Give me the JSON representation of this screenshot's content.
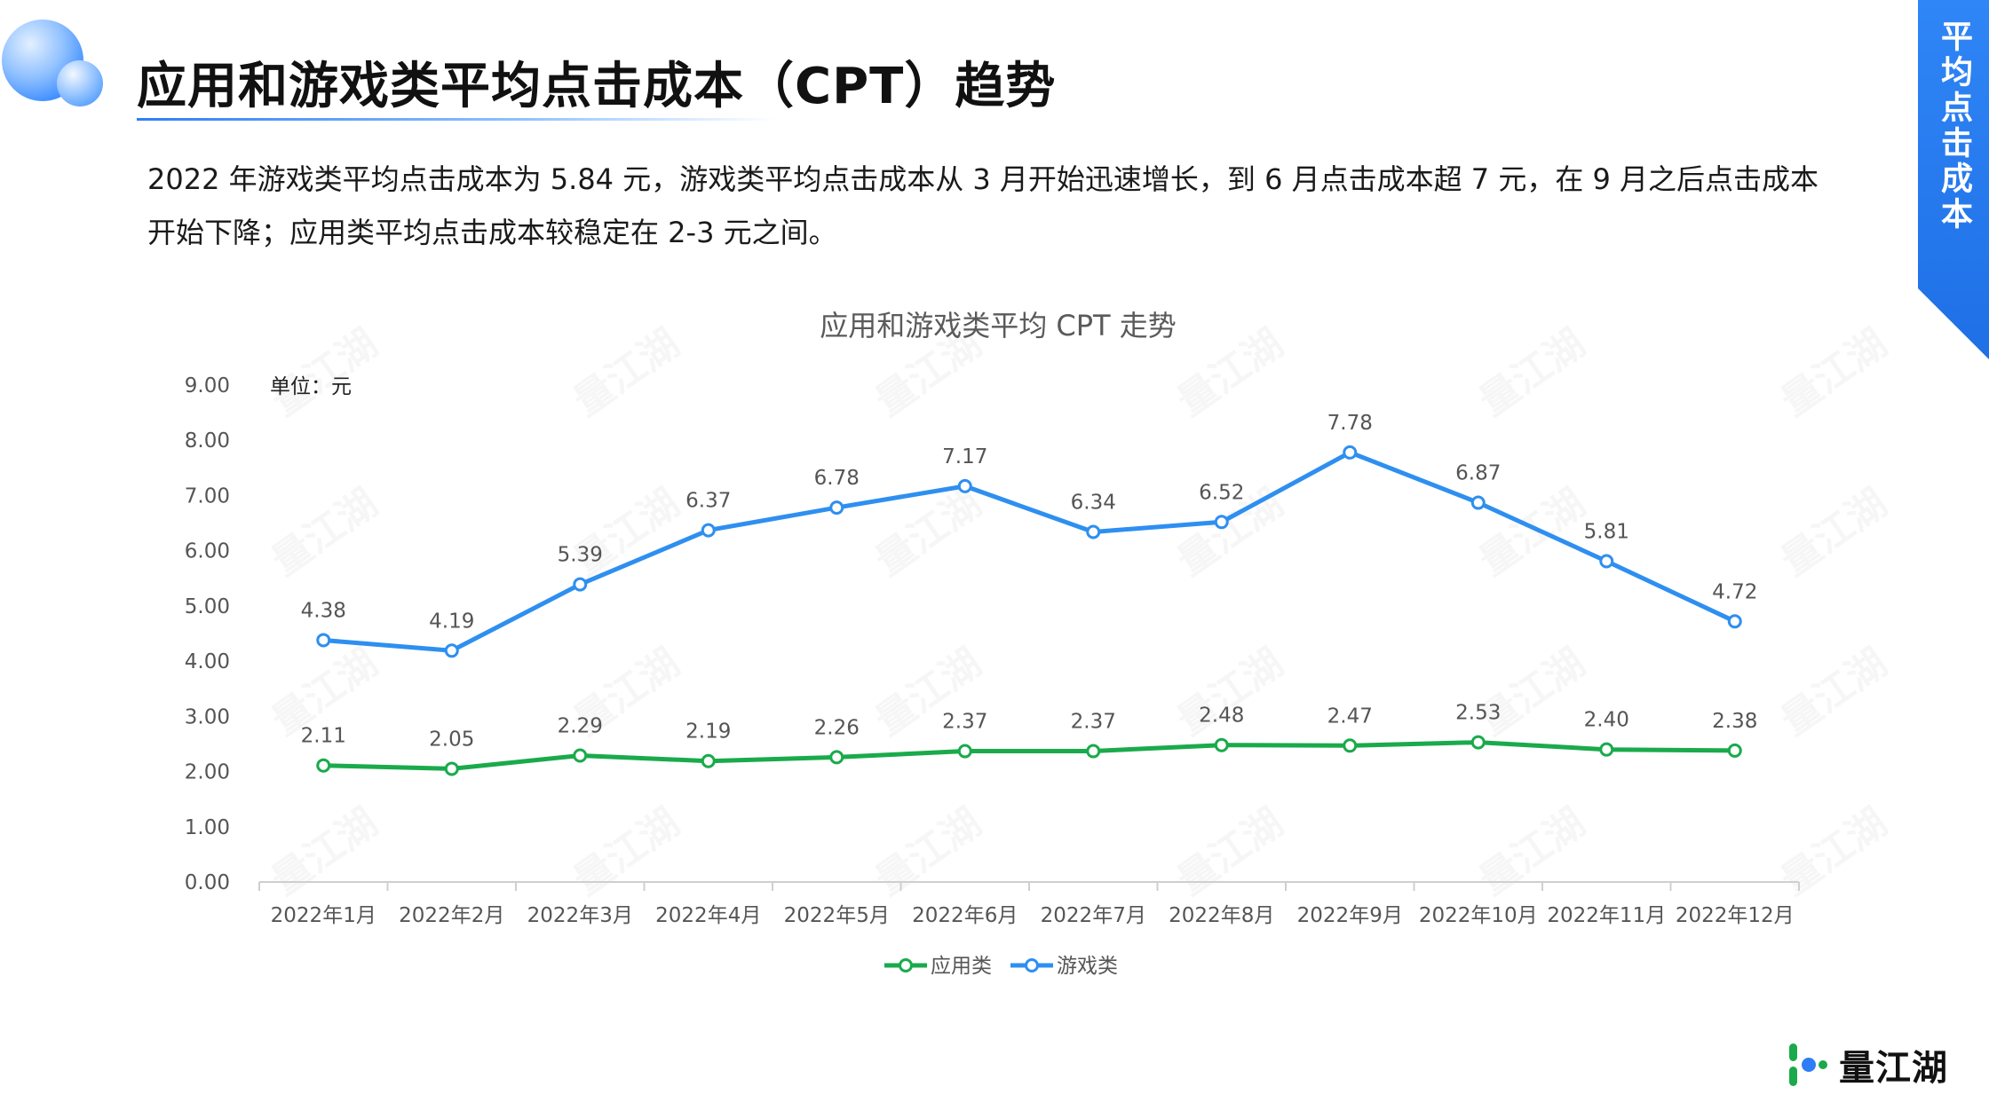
{
  "page": {
    "title": "应用和游戏类平均点击成本（CPT）趋势",
    "summary_line1": "2022 年游戏类平均点击成本为 5.84 元，游戏类平均点击成本从 3 月开始迅速增长，到 6 月点击成本超 7 元，在 9 月之后点击成本",
    "summary_line2": "开始下降；应用类平均点击成本较稳定在 2-3 元之间。",
    "side_tab": "平均点击成本"
  },
  "brand": {
    "name": "量江湖",
    "watermark": "量江湖"
  },
  "colors": {
    "accent": "#2f7df6",
    "game": "#2e8ff0",
    "app": "#1aaa4b",
    "axis": "#cfcfcf",
    "text": "#555555"
  },
  "chart_data": {
    "type": "line",
    "title": "应用和游戏类平均 CPT 走势",
    "unit_label": "单位：元",
    "categories": [
      "2022年1月",
      "2022年2月",
      "2022年3月",
      "2022年4月",
      "2022年5月",
      "2022年6月",
      "2022年7月",
      "2022年8月",
      "2022年9月",
      "2022年10月",
      "2022年11月",
      "2022年12月"
    ],
    "ylim": [
      0,
      9
    ],
    "yticks": [
      "0.00",
      "1.00",
      "2.00",
      "3.00",
      "4.00",
      "5.00",
      "6.00",
      "7.00",
      "8.00",
      "9.00"
    ],
    "grid": false,
    "legend_position": "bottom-center",
    "series": [
      {
        "name": "应用类",
        "color": "#1aaa4b",
        "values": [
          2.11,
          2.05,
          2.29,
          2.19,
          2.26,
          2.37,
          2.37,
          2.48,
          2.47,
          2.53,
          2.4,
          2.38
        ]
      },
      {
        "name": "游戏类",
        "color": "#2e8ff0",
        "values": [
          4.38,
          4.19,
          5.39,
          6.37,
          6.78,
          7.17,
          6.34,
          6.52,
          7.78,
          6.87,
          5.81,
          4.72
        ]
      }
    ]
  }
}
